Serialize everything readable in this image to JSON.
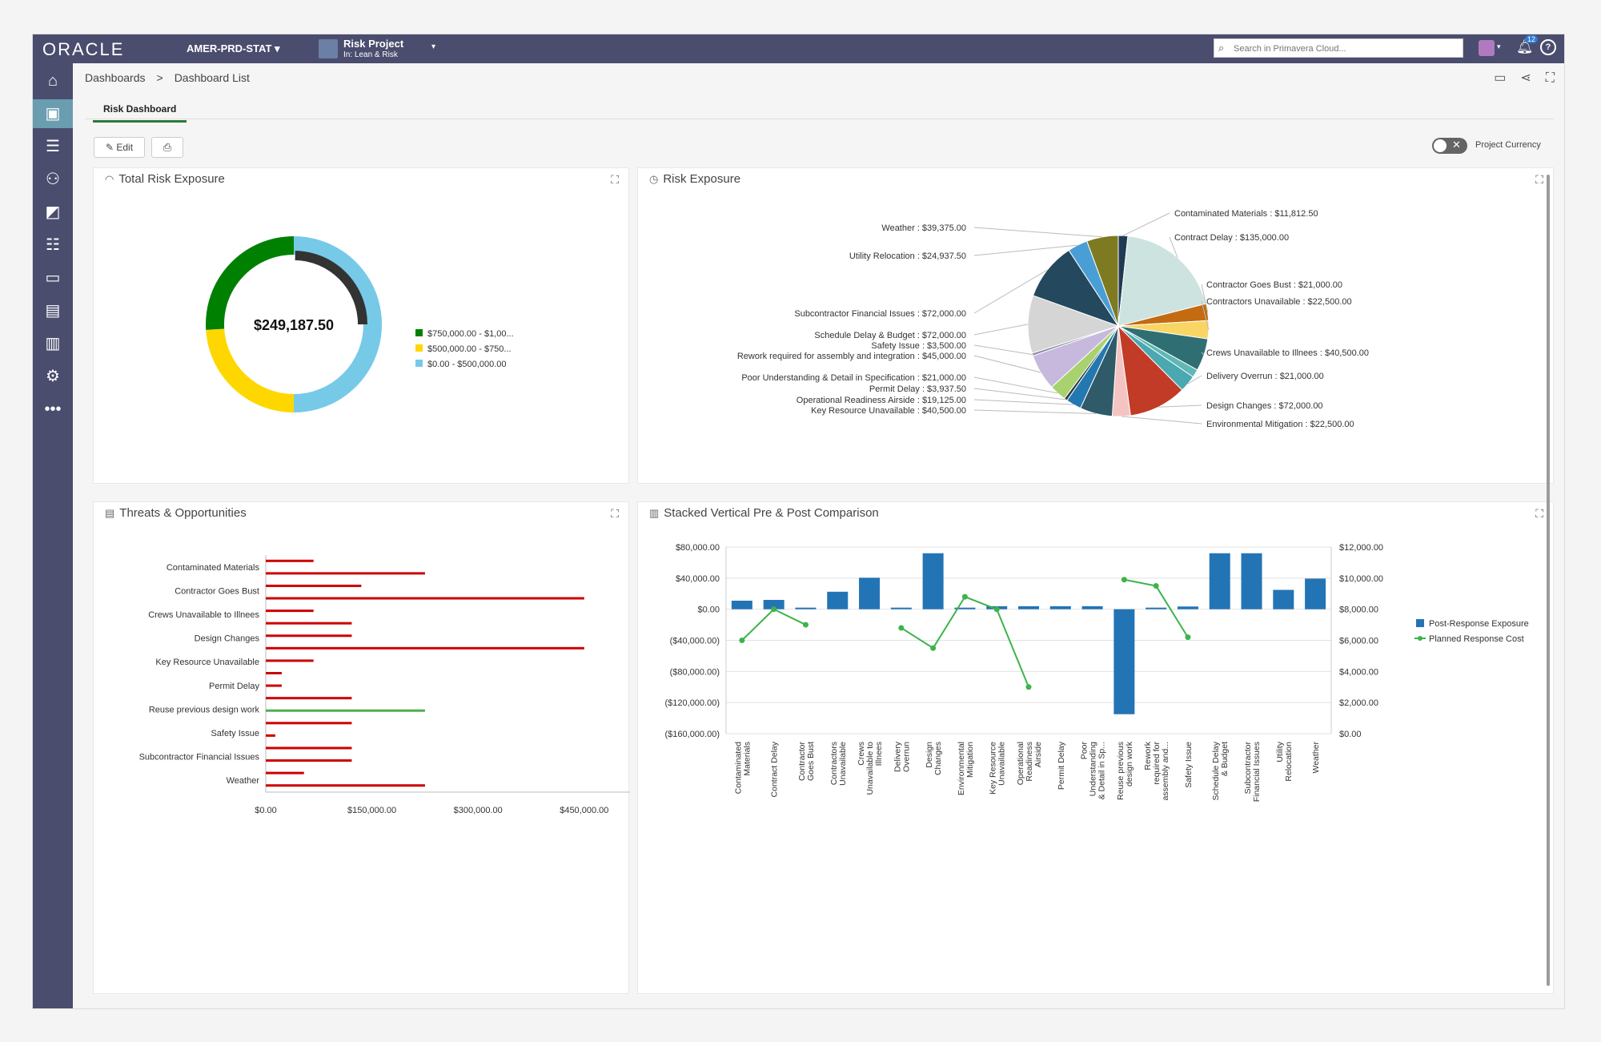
{
  "topbar": {
    "logo": "ORACLE",
    "environment": "AMER-PRD-STAT",
    "project_name": "Risk Project",
    "project_sub": "In: Lean & Risk",
    "search_placeholder": "Search in Primavera Cloud...",
    "notification_count": "12",
    "brand_color": "#4a4d6e"
  },
  "sidebar": {
    "items": [
      {
        "name": "home-icon"
      },
      {
        "name": "dashboard-icon",
        "active": true
      },
      {
        "name": "list-icon"
      },
      {
        "name": "users-icon"
      },
      {
        "name": "grid-icon"
      },
      {
        "name": "tasks-icon"
      },
      {
        "name": "folder-icon"
      },
      {
        "name": "report-icon"
      },
      {
        "name": "analytics-icon"
      },
      {
        "name": "settings-icon"
      },
      {
        "name": "more-icon"
      }
    ]
  },
  "breadcrumb": {
    "items": [
      "Dashboards",
      "Dashboard List"
    ],
    "separator": ">"
  },
  "tabs": [
    {
      "label": "Risk Dashboard",
      "active": true
    }
  ],
  "toolbar": {
    "edit_label": "Edit",
    "project_currency_label": "Project Currency",
    "project_currency_on": false
  },
  "panels": {
    "total_risk": "Total Risk Exposure",
    "risk_exposure": "Risk Exposure",
    "threats": "Threats & Opportunities",
    "stacked": "Stacked Vertical Pre & Post Comparison"
  },
  "chart_data": [
    {
      "type": "donut",
      "center_label": "$249,187.50",
      "series": [
        {
          "name": "$750,000.00 - $1,00...",
          "color": "#008000",
          "fraction": 0.26
        },
        {
          "name": "$500,000.00 - $750...",
          "color": "#ffd700",
          "fraction": 0.24
        },
        {
          "name": "$0.00 - $500,000.00",
          "color": "#77c9e8",
          "fraction": 0.5
        }
      ],
      "inner_progress": {
        "fraction": 0.25,
        "color": "#333333"
      }
    },
    {
      "type": "pie",
      "slices": [
        {
          "label": "Contaminated Materials : $11,812.50",
          "value": 11812.5,
          "color": "#1f3a52",
          "side": "right"
        },
        {
          "label": "Contract Delay : $135,000.00",
          "value": 135000,
          "color": "#cde3e0",
          "side": "right"
        },
        {
          "label": "Contractor Goes Bust : $21,000.00",
          "value": 21000,
          "color": "#c36b11",
          "side": "right"
        },
        {
          "label": "Contractors Unavailable : $22,500.00",
          "value": 22500,
          "color": "#f9d564",
          "side": "right"
        },
        {
          "label": "Crews Unavailable to Illnees : $40,500.00",
          "value": 40500,
          "color": "#2f6f73",
          "side": "right"
        },
        {
          "label": "",
          "value": 10000,
          "color": "#5fb7b6",
          "side": "none"
        },
        {
          "label": "Delivery Overrun : $21,000.00",
          "value": 21000,
          "color": "#4aa8b0",
          "side": "right"
        },
        {
          "label": "Design Changes : $72,000.00",
          "value": 72000,
          "color": "#c23b27",
          "side": "right"
        },
        {
          "label": "Environmental Mitigation : $22,500.00",
          "value": 22500,
          "color": "#f4c4c3",
          "side": "right"
        },
        {
          "label": "Key Resource Unavailable : $40,500.00",
          "value": 40500,
          "color": "#2f5a68",
          "side": "left"
        },
        {
          "label": "Operational Readiness Airside : $19,125.00",
          "value": 19125,
          "color": "#2478b0",
          "side": "left"
        },
        {
          "label": "Permit Delay : $3,937.50",
          "value": 3937.5,
          "color": "#2a3c48",
          "side": "left"
        },
        {
          "label": "Poor Understanding & Detail in Specification : $21,000.00",
          "value": 21000,
          "color": "#a8d26e",
          "side": "left"
        },
        {
          "label": "Rework required for assembly and integration : $45,000.00",
          "value": 45000,
          "color": "#c7b8dd",
          "side": "left"
        },
        {
          "label": "Safety Issue : $3,500.00",
          "value": 3500,
          "color": "#8a8fa8",
          "side": "left"
        },
        {
          "label": "Schedule Delay & Budget : $72,000.00",
          "value": 72000,
          "color": "#d5d5d5",
          "side": "left"
        },
        {
          "label": "Subcontractor Financial Issues : $72,000.00",
          "value": 72000,
          "color": "#24485e",
          "side": "left"
        },
        {
          "label": "Utility Relocation : $24,937.50",
          "value": 24937.5,
          "color": "#4a9ed6",
          "side": "left"
        },
        {
          "label": "Weather : $39,375.00",
          "value": 39375,
          "color": "#7d7a22",
          "side": "left"
        }
      ]
    },
    {
      "type": "bar",
      "orientation": "horizontal",
      "categories": [
        "Contaminated Materials",
        "Contractor Goes Bust",
        "Crews Unavailable to Illnees",
        "Design Changes",
        "Key Resource Unavailable",
        "Permit Delay",
        "Reuse previous design work",
        "Safety Issue",
        "Subcontractor Financial Issues",
        "Weather"
      ],
      "bars": [
        {
          "value": 67500,
          "color": "#cc0000"
        },
        {
          "value": 225000,
          "color": "#cc0000"
        },
        {
          "value": 135000,
          "color": "#cc0000"
        },
        {
          "value": 450000,
          "color": "#cc0000"
        },
        {
          "value": 67500,
          "color": "#cc0000"
        },
        {
          "value": 121500,
          "color": "#cc0000"
        },
        {
          "value": 121500,
          "color": "#cc0000"
        },
        {
          "value": 450000,
          "color": "#cc0000"
        },
        {
          "value": 67500,
          "color": "#cc0000"
        },
        {
          "value": 22500,
          "color": "#cc0000"
        },
        {
          "value": 22500,
          "color": "#cc0000"
        },
        {
          "value": 121500,
          "color": "#cc0000"
        },
        {
          "value": 225000,
          "color": "#4caf50"
        },
        {
          "value": 121500,
          "color": "#cc0000"
        },
        {
          "value": 13500,
          "color": "#cc0000"
        },
        {
          "value": 121500,
          "color": "#cc0000"
        },
        {
          "value": 121500,
          "color": "#cc0000"
        },
        {
          "value": 54000,
          "color": "#cc0000"
        },
        {
          "value": 225000,
          "color": "#cc0000"
        }
      ],
      "xticks": [
        "$0.00",
        "$150,000.00",
        "$300,000.00",
        "$450,000.00"
      ],
      "xlim": [
        0,
        500000
      ]
    },
    {
      "type": "bar+line",
      "categories": [
        "Contaminated Materials",
        "Contract Delay",
        "Contractor Goes Bust",
        "Contractors Unavailable",
        "Crews Unavailable to Illnees",
        "Delivery Overrun",
        "Design Changes",
        "Environmental Mitigation",
        "Key Resource Unavailable",
        "Operational Readiness Airside",
        "Permit Delay",
        "Poor Understanding & Detail in Sp...",
        "Reuse previous design work",
        "Rework required for assembly and...",
        "Safety Issue",
        "Schedule Delay & Budget",
        "Subcontractor Financial Issues",
        "Utility Relocation",
        "Weather"
      ],
      "series": [
        {
          "name": "Post-Response Exposure",
          "color": "#2374b5",
          "axis": "left",
          "values": [
            11000,
            12000,
            0,
            22500,
            40500,
            0,
            72000,
            0,
            3900,
            3900,
            3900,
            3900,
            -135000,
            0,
            3500,
            72000,
            72000,
            24900,
            39400
          ]
        },
        {
          "name": "Planned Response Cost",
          "color": "#3cb44b",
          "axis": "right",
          "values": [
            6000,
            8000,
            7000,
            null,
            null,
            6800,
            5500,
            8800,
            8000,
            3000,
            null,
            null,
            9900,
            9500,
            6200,
            null,
            null,
            null,
            null
          ]
        }
      ],
      "y_left_ticks": [
        "$80,000.00",
        "$40,000.00",
        "$0.00",
        "($40,000.00)",
        "($80,000.00)",
        "($120,000.00)",
        "($160,000.00)"
      ],
      "y_left_lim": [
        -160000,
        80000
      ],
      "y_right_ticks": [
        "$12,000.00",
        "$10,000.00",
        "$8,000.00",
        "$6,000.00",
        "$4,000.00",
        "$2,000.00",
        "$0.00"
      ],
      "y_right_lim": [
        0,
        12000
      ],
      "x_tick_lines": [
        [
          "Contaminated",
          "Materials"
        ],
        [
          "Contract Delay"
        ],
        [
          "Contractor",
          "Goes Bust"
        ],
        [
          "Contractors",
          "Unavailable"
        ],
        [
          "Crews",
          "Unavailable to",
          "Illnees"
        ],
        [
          "Delivery",
          "Overrun"
        ],
        [
          "Design",
          "Changes"
        ],
        [
          "Environmental",
          "Mitigation"
        ],
        [
          "Key Resource",
          "Unavailable"
        ],
        [
          "Operational",
          "Readiness",
          "Airside"
        ],
        [
          "Permit Delay"
        ],
        [
          "Poor",
          "Understanding",
          "& Detail in Sp..."
        ],
        [
          "Reuse previous",
          "design work"
        ],
        [
          "Rework",
          "required for",
          "assembly and..."
        ],
        [
          "Safety Issue"
        ],
        [
          "Schedule Delay",
          "& Budget"
        ],
        [
          "Subcontractor",
          "Financial Issues"
        ],
        [
          "Utility",
          "Relocation"
        ],
        [
          "Weather"
        ]
      ]
    }
  ]
}
